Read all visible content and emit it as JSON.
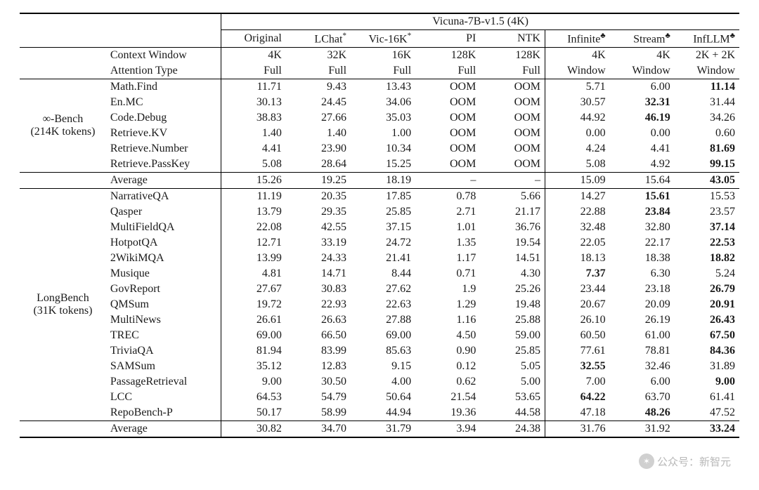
{
  "header": {
    "model": "Vicuna-7B-v1.5 (4K)",
    "columns": [
      "Original",
      "LChat*",
      "Vic-16K*",
      "PI",
      "NTK",
      "Infinite♣",
      "Stream♣",
      "InfLLM♣"
    ]
  },
  "specs": {
    "context_label": "Context Window",
    "attention_label": "Attention Type",
    "context": [
      "4K",
      "32K",
      "16K",
      "128K",
      "128K",
      "4K",
      "4K",
      "2K + 2K"
    ],
    "attention": [
      "Full",
      "Full",
      "Full",
      "Full",
      "Full",
      "Window",
      "Window",
      "Window"
    ]
  },
  "groups": [
    {
      "name": "∞-Bench",
      "sub": "(214K tokens)",
      "rows": [
        {
          "label": "Math.Find",
          "vals": [
            "11.71",
            "9.43",
            "13.43",
            "OOM",
            "OOM",
            "5.71",
            "6.00",
            "11.14"
          ],
          "bold": [
            7
          ]
        },
        {
          "label": "En.MC",
          "vals": [
            "30.13",
            "24.45",
            "34.06",
            "OOM",
            "OOM",
            "30.57",
            "32.31",
            "31.44"
          ],
          "bold": [
            6
          ]
        },
        {
          "label": "Code.Debug",
          "vals": [
            "38.83",
            "27.66",
            "35.03",
            "OOM",
            "OOM",
            "44.92",
            "46.19",
            "34.26"
          ],
          "bold": [
            6
          ]
        },
        {
          "label": "Retrieve.KV",
          "vals": [
            "1.40",
            "1.40",
            "1.00",
            "OOM",
            "OOM",
            "0.00",
            "0.00",
            "0.60"
          ],
          "bold": []
        },
        {
          "label": "Retrieve.Number",
          "vals": [
            "4.41",
            "23.90",
            "10.34",
            "OOM",
            "OOM",
            "4.24",
            "4.41",
            "81.69"
          ],
          "bold": [
            7
          ]
        },
        {
          "label": "Retrieve.PassKey",
          "vals": [
            "5.08",
            "28.64",
            "15.25",
            "OOM",
            "OOM",
            "5.08",
            "4.92",
            "99.15"
          ],
          "bold": [
            7
          ]
        }
      ],
      "average": {
        "label": "Average",
        "vals": [
          "15.26",
          "19.25",
          "18.19",
          "–",
          "–",
          "15.09",
          "15.64",
          "43.05"
        ],
        "bold": [
          7
        ]
      }
    },
    {
      "name": "LongBench",
      "sub": "(31K tokens)",
      "rows": [
        {
          "label": "NarrativeQA",
          "vals": [
            "11.19",
            "20.35",
            "17.85",
            "0.78",
            "5.66",
            "14.27",
            "15.61",
            "15.53"
          ],
          "bold": [
            6
          ]
        },
        {
          "label": "Qasper",
          "vals": [
            "13.79",
            "29.35",
            "25.85",
            "2.71",
            "21.17",
            "22.88",
            "23.84",
            "23.57"
          ],
          "bold": [
            6
          ]
        },
        {
          "label": "MultiFieldQA",
          "vals": [
            "22.08",
            "42.55",
            "37.15",
            "1.01",
            "36.76",
            "32.48",
            "32.80",
            "37.14"
          ],
          "bold": [
            7
          ]
        },
        {
          "label": "HotpotQA",
          "vals": [
            "12.71",
            "33.19",
            "24.72",
            "1.35",
            "19.54",
            "22.05",
            "22.17",
            "22.53"
          ],
          "bold": [
            7
          ]
        },
        {
          "label": "2WikiMQA",
          "vals": [
            "13.99",
            "24.33",
            "21.41",
            "1.17",
            "14.51",
            "18.13",
            "18.38",
            "18.82"
          ],
          "bold": [
            7
          ]
        },
        {
          "label": "Musique",
          "vals": [
            "4.81",
            "14.71",
            "8.44",
            "0.71",
            "4.30",
            "7.37",
            "6.30",
            "5.24"
          ],
          "bold": [
            5
          ]
        },
        {
          "label": "GovReport",
          "vals": [
            "27.67",
            "30.83",
            "27.62",
            "1.9",
            "25.26",
            "23.44",
            "23.18",
            "26.79"
          ],
          "bold": [
            7
          ]
        },
        {
          "label": "QMSum",
          "vals": [
            "19.72",
            "22.93",
            "22.63",
            "1.29",
            "19.48",
            "20.67",
            "20.09",
            "20.91"
          ],
          "bold": [
            7
          ]
        },
        {
          "label": "MultiNews",
          "vals": [
            "26.61",
            "26.63",
            "27.88",
            "1.16",
            "25.88",
            "26.10",
            "26.19",
            "26.43"
          ],
          "bold": [
            7
          ]
        },
        {
          "label": "TREC",
          "vals": [
            "69.00",
            "66.50",
            "69.00",
            "4.50",
            "59.00",
            "60.50",
            "61.00",
            "67.50"
          ],
          "bold": [
            7
          ]
        },
        {
          "label": "TriviaQA",
          "vals": [
            "81.94",
            "83.99",
            "85.63",
            "0.90",
            "25.85",
            "77.61",
            "78.81",
            "84.36"
          ],
          "bold": [
            7
          ]
        },
        {
          "label": "SAMSum",
          "vals": [
            "35.12",
            "12.83",
            "9.15",
            "0.12",
            "5.05",
            "32.55",
            "32.46",
            "31.89"
          ],
          "bold": [
            5
          ]
        },
        {
          "label": "PassageRetrieval",
          "vals": [
            "9.00",
            "30.50",
            "4.00",
            "0.62",
            "5.00",
            "7.00",
            "6.00",
            "9.00"
          ],
          "bold": [
            7
          ]
        },
        {
          "label": "LCC",
          "vals": [
            "64.53",
            "54.79",
            "50.64",
            "21.54",
            "53.65",
            "64.22",
            "63.70",
            "61.41"
          ],
          "bold": [
            5
          ]
        },
        {
          "label": "RepoBench-P",
          "vals": [
            "50.17",
            "58.99",
            "44.94",
            "19.36",
            "44.58",
            "47.18",
            "48.26",
            "47.52"
          ],
          "bold": [
            6
          ]
        }
      ],
      "average": {
        "label": "Average",
        "vals": [
          "30.82",
          "34.70",
          "31.79",
          "3.94",
          "24.38",
          "31.76",
          "31.92",
          "33.24"
        ],
        "bold": [
          7
        ]
      }
    }
  ],
  "watermark": {
    "icon": "wx",
    "text": "公众号：新智元"
  }
}
